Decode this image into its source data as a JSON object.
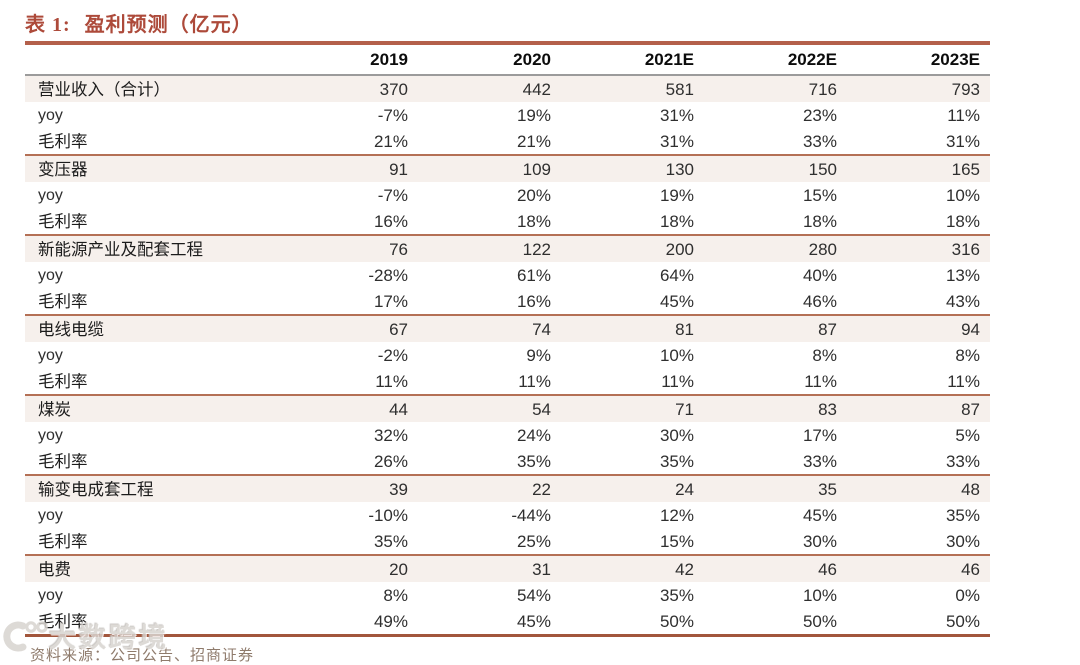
{
  "title": {
    "prefix": "表 1:",
    "text": "盈利预测（亿元）"
  },
  "table": {
    "columns": [
      "2019",
      "2020",
      "2021E",
      "2022E",
      "2023E"
    ],
    "sub_row_labels": {
      "yoy": "yoy",
      "margin": "毛利率"
    },
    "sections": [
      {
        "label": "营业收入（合计）",
        "values": [
          "370",
          "442",
          "581",
          "716",
          "793"
        ],
        "yoy": [
          "-7%",
          "19%",
          "31%",
          "23%",
          "11%"
        ],
        "margin": [
          "21%",
          "21%",
          "31%",
          "33%",
          "31%"
        ]
      },
      {
        "label": "变压器",
        "values": [
          "91",
          "109",
          "130",
          "150",
          "165"
        ],
        "yoy": [
          "-7%",
          "20%",
          "19%",
          "15%",
          "10%"
        ],
        "margin": [
          "16%",
          "18%",
          "18%",
          "18%",
          "18%"
        ]
      },
      {
        "label": "新能源产业及配套工程",
        "values": [
          "76",
          "122",
          "200",
          "280",
          "316"
        ],
        "yoy": [
          "-28%",
          "61%",
          "64%",
          "40%",
          "13%"
        ],
        "margin": [
          "17%",
          "16%",
          "45%",
          "46%",
          "43%"
        ]
      },
      {
        "label": "电线电缆",
        "values": [
          "67",
          "74",
          "81",
          "87",
          "94"
        ],
        "yoy": [
          "-2%",
          "9%",
          "10%",
          "8%",
          "8%"
        ],
        "margin": [
          "11%",
          "11%",
          "11%",
          "11%",
          "11%"
        ]
      },
      {
        "label": "煤炭",
        "values": [
          "44",
          "54",
          "71",
          "83",
          "87"
        ],
        "yoy": [
          "32%",
          "24%",
          "30%",
          "17%",
          "5%"
        ],
        "margin": [
          "26%",
          "35%",
          "35%",
          "33%",
          "33%"
        ]
      },
      {
        "label": "输变电成套工程",
        "values": [
          "39",
          "22",
          "24",
          "35",
          "48"
        ],
        "yoy": [
          "-10%",
          "-44%",
          "12%",
          "45%",
          "35%"
        ],
        "margin": [
          "35%",
          "25%",
          "15%",
          "30%",
          "30%"
        ]
      },
      {
        "label": "电费",
        "values": [
          "20",
          "31",
          "42",
          "46",
          "46"
        ],
        "yoy": [
          "8%",
          "54%",
          "35%",
          "10%",
          "0%"
        ],
        "margin": [
          "49%",
          "45%",
          "50%",
          "50%",
          "50%"
        ]
      }
    ]
  },
  "footer": {
    "source": "资料来源：公司公告、招商证券"
  },
  "watermark": {
    "text": "大数跨境"
  },
  "colors": {
    "accent": "#ad4a3a",
    "thick_rule": "#b4604b",
    "section_border": "#b47055",
    "section_bg": "#f6f0ec",
    "header_rule": "#9b9b9b",
    "bottom_rule": "#a2563c",
    "source_text": "#8f7b6c",
    "watermark_gray": "#d8d4d0"
  }
}
